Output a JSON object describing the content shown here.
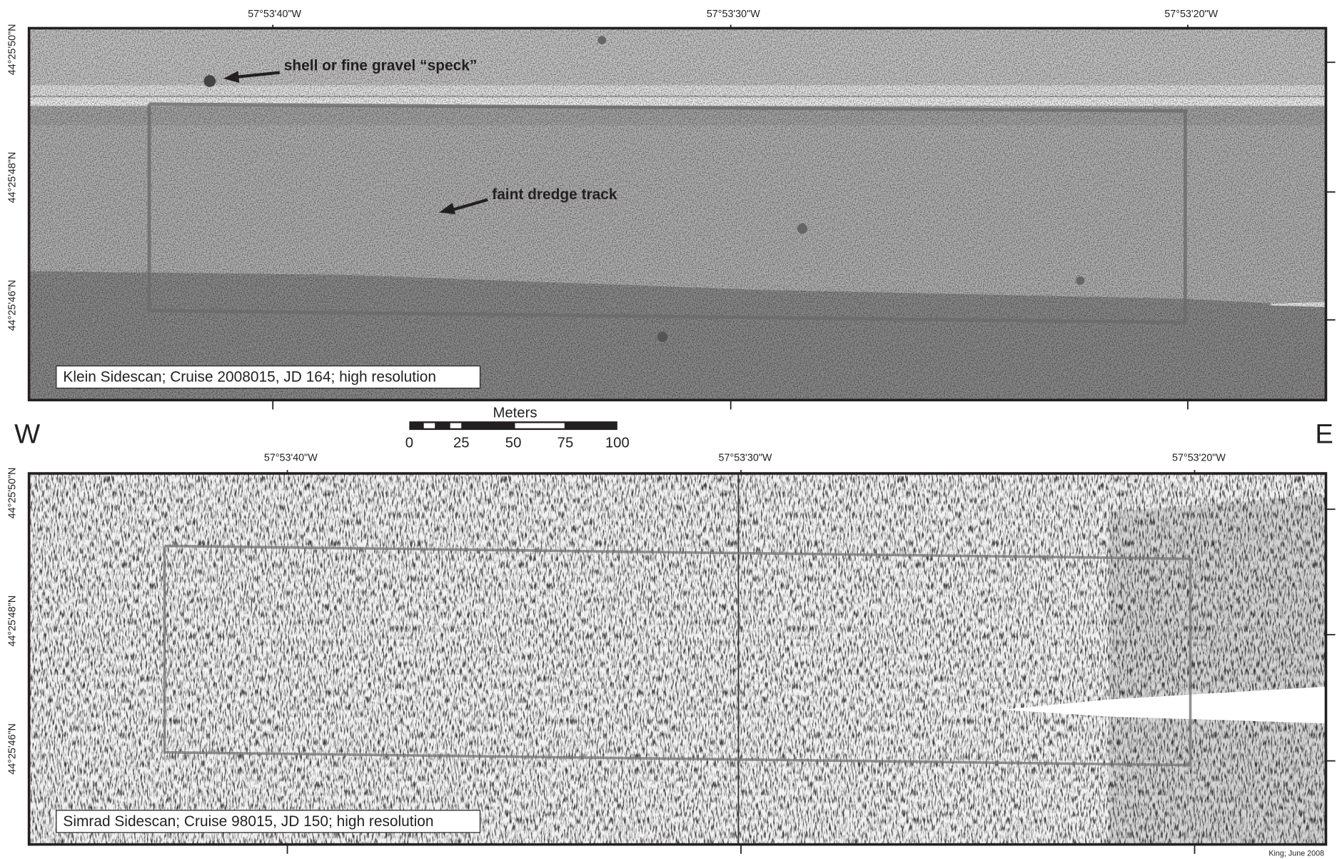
{
  "panels": [
    {
      "caption": "Klein Sidescan; Cruise 2008015, JD 164; high resolution",
      "longitudes": [
        "57°53'40\"W",
        "57°53'30\"W",
        "57°53'20\"W"
      ],
      "latitudes": [
        "44°25'50\"N",
        "44°25'48\"N",
        "44°25'46\"N"
      ],
      "annotations": [
        "shell or fine gravel “speck”",
        "faint dredge track"
      ]
    },
    {
      "caption": "Simrad Sidescan; Cruise 98015, JD 150; high resolution",
      "longitudes": [
        "57°53'40\"W",
        "57°53'30\"W",
        "57°53'20\"W"
      ],
      "latitudes": [
        "44°25'50\"N",
        "44°25'48\"N",
        "44°25'46\"N"
      ]
    }
  ],
  "scale_bar": {
    "unit": "Meters",
    "ticks": [
      "0",
      "25",
      "50",
      "75",
      "100"
    ]
  },
  "directions": {
    "west": "W",
    "east": "E"
  },
  "credit": "King; June 2008"
}
